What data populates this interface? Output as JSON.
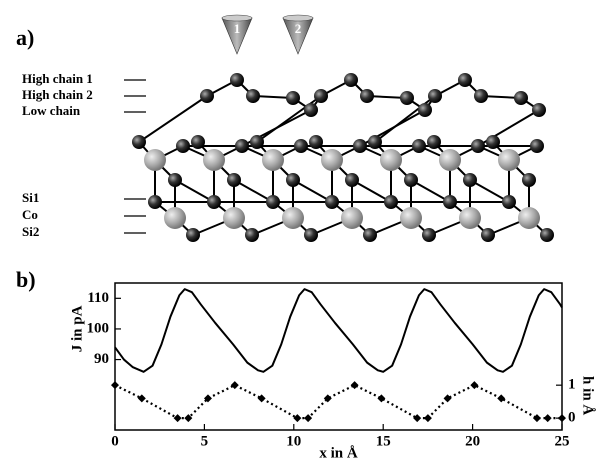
{
  "diagram": {
    "label": "a)",
    "tips": [
      "1",
      "2"
    ],
    "levels": [
      "High chain 1",
      "High chain 2",
      "Low chain",
      "Si1",
      "Co",
      "Si2"
    ]
  },
  "chart_data": {
    "type": "line",
    "label": "b)",
    "xlabel": "x in Å",
    "ylabel": "J in pA",
    "y2label": "h in Å",
    "xlim": [
      0,
      25
    ],
    "xticks": [
      0,
      5,
      10,
      15,
      20,
      25
    ],
    "ylim": [
      67,
      115
    ],
    "yticks": [
      90,
      100,
      110
    ],
    "y2lim": [
      -0.36,
      4.1
    ],
    "y2ticks": [
      0,
      1
    ],
    "series": [
      {
        "color": "#000000",
        "dash": "solid",
        "marker": "none",
        "x": [
          0,
          0.5,
          1.0,
          1.6,
          2.1,
          2.6,
          3.1,
          3.6,
          3.9,
          4.3,
          4.8,
          5.6,
          6.6,
          7.4,
          8.0,
          8.3,
          8.8,
          9.3,
          9.8,
          10.3,
          10.6,
          11.0,
          11.5,
          12.3,
          13.3,
          14.1,
          14.7,
          15.0,
          15.5,
          16.0,
          16.5,
          17.0,
          17.3,
          17.7,
          18.2,
          19.0,
          20.0,
          20.8,
          21.4,
          21.7,
          22.2,
          22.7,
          23.2,
          23.7,
          24.0,
          24.4,
          24.9,
          25
        ],
        "values": [
          94,
          90,
          87.5,
          86,
          88,
          95,
          104,
          111,
          113,
          112,
          108,
          102,
          95,
          89,
          86.5,
          86,
          88,
          95,
          104,
          111,
          113,
          112,
          108,
          102,
          95,
          89,
          86.5,
          86,
          88,
          95,
          104,
          111,
          113,
          112,
          108,
          102,
          95,
          89,
          86.5,
          86,
          88,
          95,
          104,
          111,
          113,
          112,
          108,
          107
        ]
      },
      {
        "color": "#000000",
        "dash": "dotted",
        "marker": "diamond",
        "axis": "y2",
        "x": [
          0,
          1.5,
          3.5,
          4.1,
          5.2,
          6.7,
          8.2,
          10.2,
          10.8,
          11.9,
          13.4,
          14.9,
          16.9,
          17.5,
          18.6,
          20.1,
          21.6,
          23.6,
          24.2,
          25
        ],
        "values": [
          1,
          0.6,
          0,
          0,
          0.6,
          1,
          0.6,
          0,
          0,
          0.6,
          1,
          0.6,
          0,
          0,
          0.6,
          1,
          0.6,
          0,
          0,
          0
        ]
      }
    ]
  }
}
